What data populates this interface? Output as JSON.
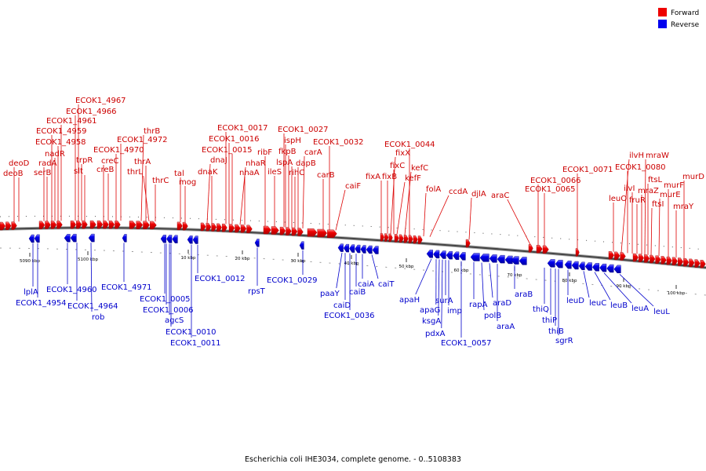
{
  "caption": "Escherichia coli IHE3034, complete genome. - 0..5108383",
  "legend": [
    {
      "label": "Forward",
      "color": "#ee0000"
    },
    {
      "label": "Reverse",
      "color": "#0000ee"
    }
  ],
  "colors": {
    "forward": "#ee0000",
    "reverse": "#0000ee",
    "forward_leader": "#dd0000",
    "reverse_leader": "#0000cc"
  },
  "ticks": [
    "5090 kbp",
    "5100 kbp",
    "10 kbp",
    "20 kbp",
    "30 kbp",
    "40 kbp",
    "50 kbp",
    "60 kbp",
    "70 kbp",
    "80 kbp",
    "90 kbp",
    "100 kbp"
  ],
  "forward_labels": [
    "deoD",
    "deoB",
    "radA",
    "serB",
    "ECOK1_4959",
    "nadR",
    "ECOK1_4958",
    "ECOK1_4961",
    "ECOK1_4966",
    "ECOK1_4967",
    "trpR",
    "slt",
    "creC",
    "creB",
    "ECOK1_4970",
    "ECOK1_4972",
    "thrB",
    "thrA",
    "thrL",
    "thrC",
    "tal",
    "mog",
    "dnaJ",
    "dnaK",
    "ECOK1_0017",
    "ECOK1_0016",
    "ECOK1_0015",
    "nhaR",
    "nhaA",
    "ribF",
    "ileS",
    "ECOK1_0027",
    "ispH",
    "fkpB",
    "lspA",
    "rihC",
    "dapB",
    "carA",
    "carB",
    "ECOK1_0032",
    "caiF",
    "fixA",
    "fixB",
    "fixX",
    "fixC",
    "kefF",
    "kefC",
    "ECOK1_0044",
    "folA",
    "ccdA",
    "djlA",
    "araC",
    "ECOK1_0066",
    "ECOK1_0065",
    "ECOK1_0071",
    "leuO",
    "ilvH",
    "ECOK1_0080",
    "ilvI",
    "fruR",
    "mraZ",
    "mraW",
    "ftsL",
    "ftsI",
    "murE",
    "murF",
    "mraY",
    "murD"
  ],
  "reverse_labels": [
    "lplA",
    "ECOK1_4954",
    "ECOK1_4960",
    "ECOK1_4964",
    "rob",
    "ECOK1_4971",
    "ECOK1_0005",
    "ECOK1_0006",
    "agcS",
    "ECOK1_0010",
    "ECOK1_0011",
    "ECOK1_0012",
    "rpsT",
    "ECOK1_0029",
    "paaY",
    "caiD",
    "ECOK1_0036",
    "caiB",
    "caiA",
    "caiT",
    "apaH",
    "apaG",
    "ksgA",
    "pdxA",
    "surA",
    "imp",
    "ECOK1_0057",
    "rapA",
    "polB",
    "araD",
    "araA",
    "araB",
    "thiQ",
    "thiP",
    "thiB",
    "sgrR",
    "leuD",
    "leuC",
    "leuB",
    "leuA",
    "leuL"
  ]
}
